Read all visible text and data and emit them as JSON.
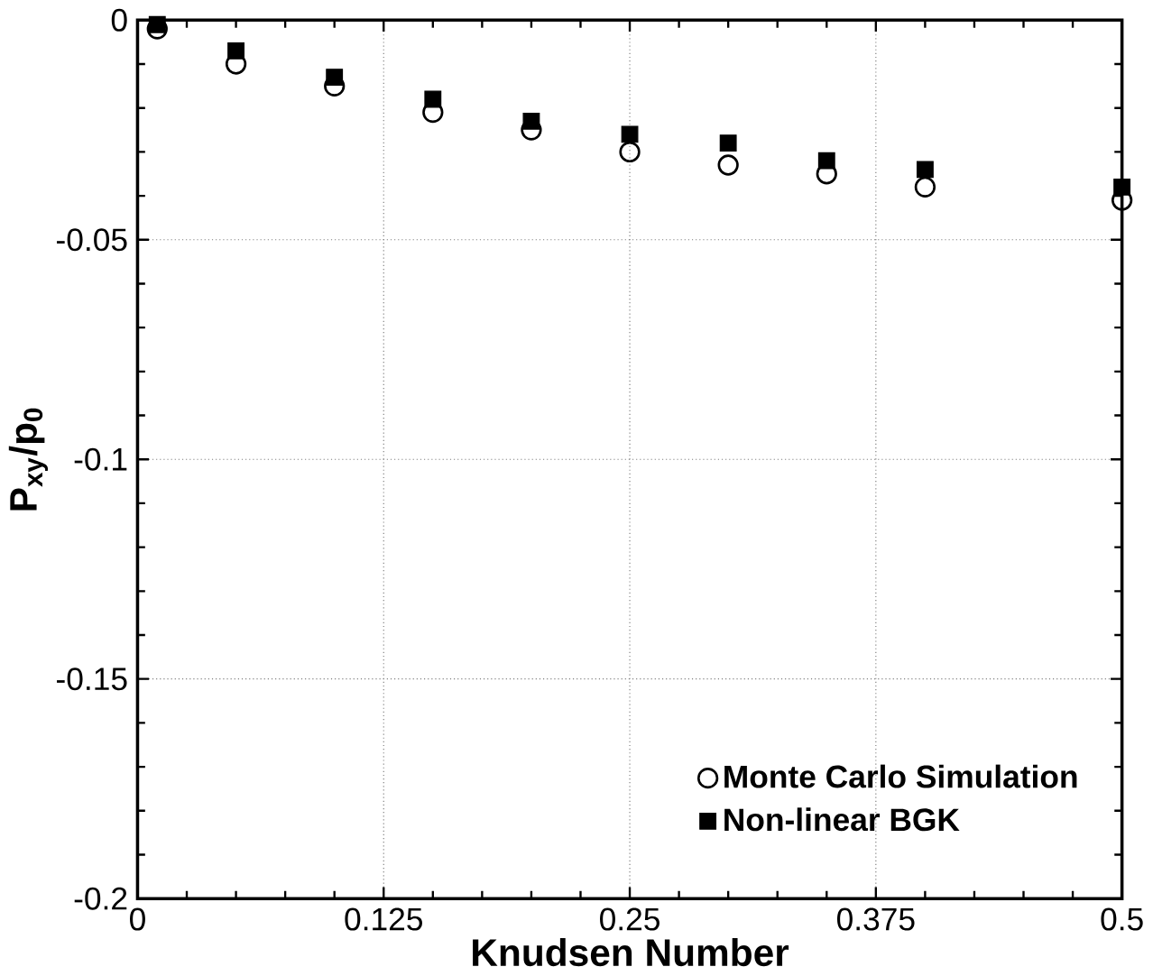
{
  "chart_data": {
    "type": "scatter",
    "xlabel": "Knudsen Number",
    "ylabel": "P$_{xy}$/p$_{0}$",
    "xlim": [
      0,
      0.5
    ],
    "ylim": [
      -0.2,
      0
    ],
    "xticks": [
      0,
      0.125,
      0.25,
      0.375,
      0.5
    ],
    "yticks": [
      -0.2,
      -0.15,
      -0.1,
      -0.05,
      0
    ],
    "grid": true,
    "legend": "bottom right",
    "series": [
      {
        "name": "Monte Carlo Simulation",
        "color": "#000000",
        "marker": "circle",
        "x": [
          0.01,
          0.05,
          0.1,
          0.15,
          0.2,
          0.25,
          0.3,
          0.35,
          0.4,
          0.5
        ],
        "values": [
          -0.002,
          -0.01,
          -0.015,
          -0.021,
          -0.025,
          -0.03,
          -0.033,
          -0.035,
          -0.038,
          -0.041
        ]
      },
      {
        "name": "Non-linear BGK",
        "color": "#000000",
        "marker": "square",
        "x": [
          0.01,
          0.05,
          0.1,
          0.15,
          0.2,
          0.25,
          0.3,
          0.35,
          0.4,
          0.5
        ],
        "values": [
          -0.001,
          -0.007,
          -0.013,
          -0.018,
          -0.023,
          -0.026,
          -0.028,
          -0.032,
          -0.034,
          -0.038
        ]
      }
    ]
  }
}
